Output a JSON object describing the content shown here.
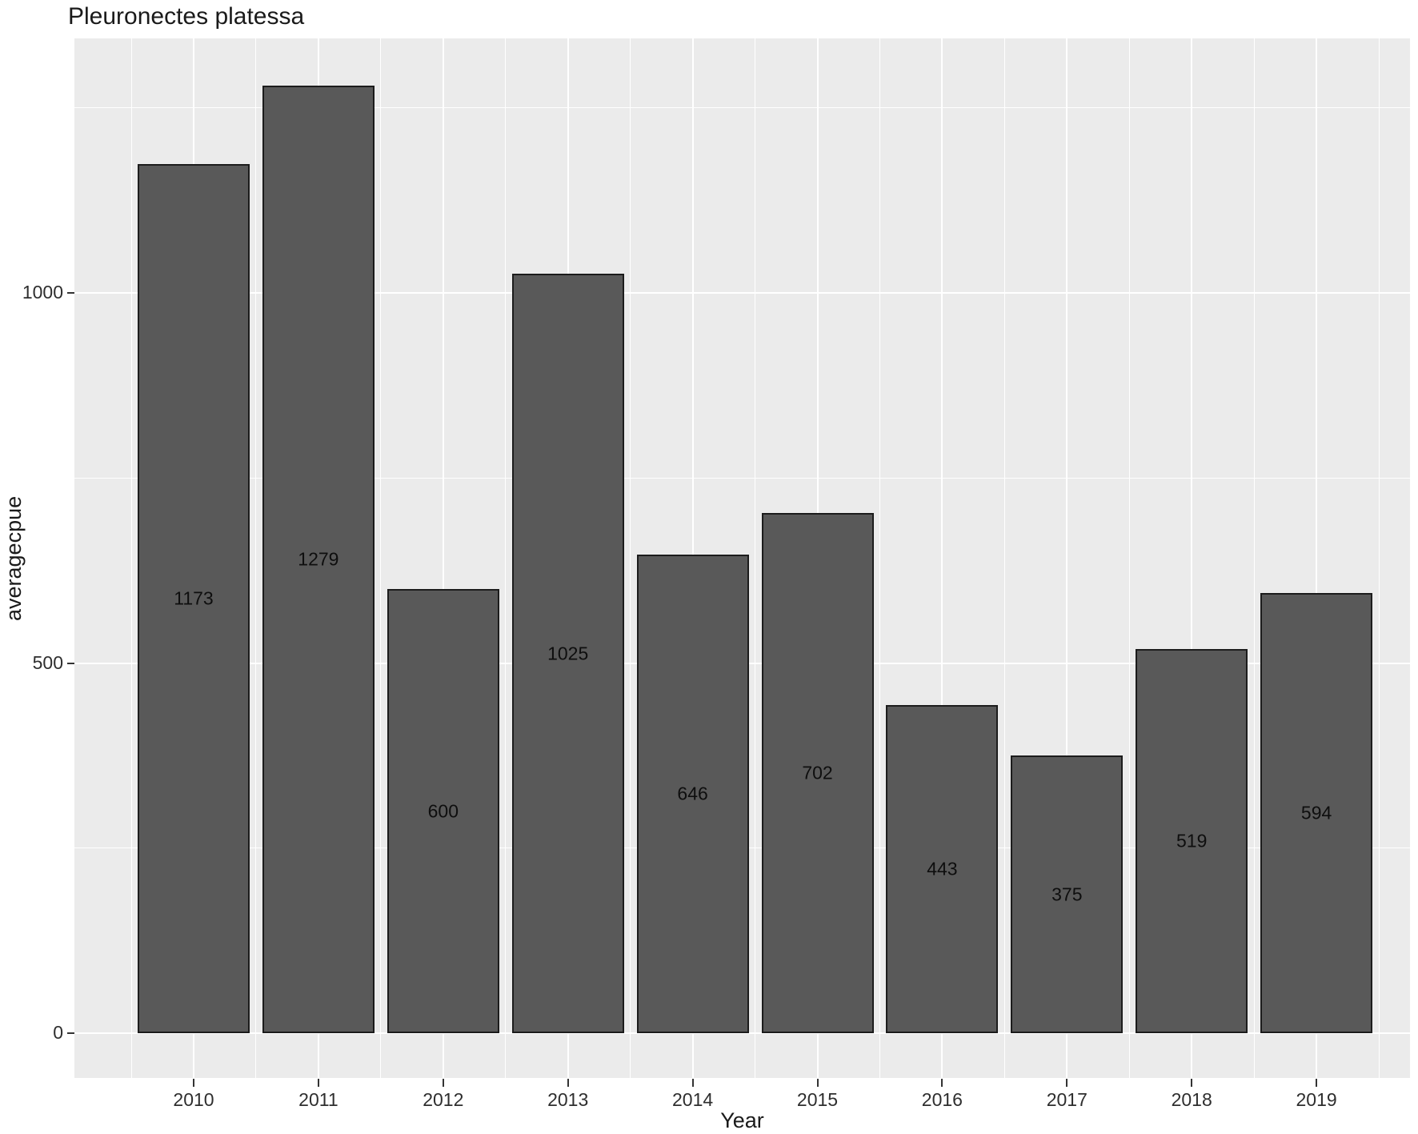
{
  "chart_data": {
    "type": "bar",
    "title": "Pleuronectes platessa",
    "xlabel": "Year",
    "ylabel": "averagecpue",
    "categories": [
      "2010",
      "2011",
      "2012",
      "2013",
      "2014",
      "2015",
      "2016",
      "2017",
      "2018",
      "2019"
    ],
    "values": [
      1173,
      1279,
      600,
      1025,
      646,
      702,
      443,
      375,
      519,
      594
    ],
    "bar_value_labels": [
      "1173",
      "1279",
      "600",
      "1025",
      "646",
      "702",
      "443",
      "375",
      "519",
      "594"
    ],
    "yticks": [
      0,
      500,
      1000
    ],
    "ytick_labels": [
      "0",
      "500",
      "1000"
    ],
    "minor_yticks": [
      250,
      750,
      1250
    ],
    "ylim": [
      -60,
      1343
    ],
    "grid": true,
    "legend": "none",
    "colors": {
      "panel_background": "#ebebeb",
      "gridline": "#ffffff",
      "bar_fill": "#595959",
      "bar_outline": "#1c1c1c",
      "text": "#1a1a1a"
    }
  }
}
